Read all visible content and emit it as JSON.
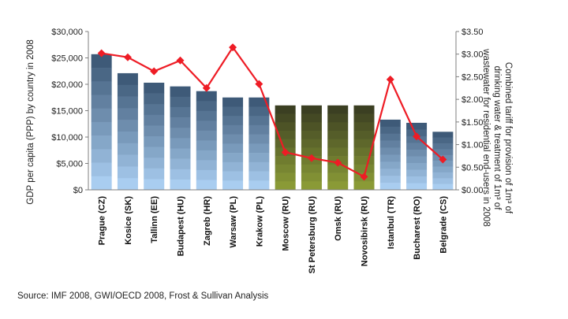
{
  "chart_data": {
    "type": "bar",
    "categories": [
      "Prague (CZ)",
      "Kosice (SK)",
      "Tallinn (EE)",
      "Budapest (HU)",
      "Zagreb (HR)",
      "Warsaw (PL)",
      "Krakow (PL)",
      "Moscow (RU)",
      "St Petersburg (RU)",
      "Omsk (RU)",
      "Novosibirsk (RU)",
      "Istanbul (TR)",
      "Bucharest (RO)",
      "Belgrade (CS)"
    ],
    "series": [
      {
        "type": "bar",
        "axis": "left",
        "values": [
          25700,
          22100,
          20300,
          19600,
          18700,
          17500,
          17500,
          16000,
          16000,
          16000,
          16000,
          13300,
          12700,
          11000
        ]
      },
      {
        "type": "line",
        "axis": "right",
        "values": [
          3.02,
          2.93,
          2.62,
          2.86,
          2.25,
          3.15,
          2.34,
          0.83,
          0.7,
          0.6,
          0.29,
          2.44,
          1.18,
          0.67
        ]
      }
    ],
    "ylabel": "GDP per capita (PPP) by country in 2008",
    "y2label": "Combined tariff for provision of 1m³ of drinking water & treatment of 1m³ of wastewater for residential end-users in 2008",
    "ylim": [
      0,
      30000
    ],
    "y2lim": [
      0,
      3.5
    ],
    "yticks": [
      "$0",
      "$5,000",
      "$10,000",
      "$15,000",
      "$20,000",
      "$25,000",
      "$30,000"
    ],
    "y2ticks": [
      "$0.00",
      "$0.50",
      "$1.00",
      "$1.50",
      "$2.00",
      "$2.50",
      "$3.00",
      "$3.50"
    ],
    "grid": false,
    "colors": {
      "bar_blue_top": "#3e5a78",
      "bar_blue_bottom": "#a9cdf0",
      "bar_olive_top": "#3b3f22",
      "bar_olive_bottom": "#8a9a36",
      "line": "#ee1c25",
      "axis": "#7f7f7f"
    },
    "source": "Source: IMF 2008, GWI/OECD 2008, Frost & Sullivan Analysis"
  }
}
